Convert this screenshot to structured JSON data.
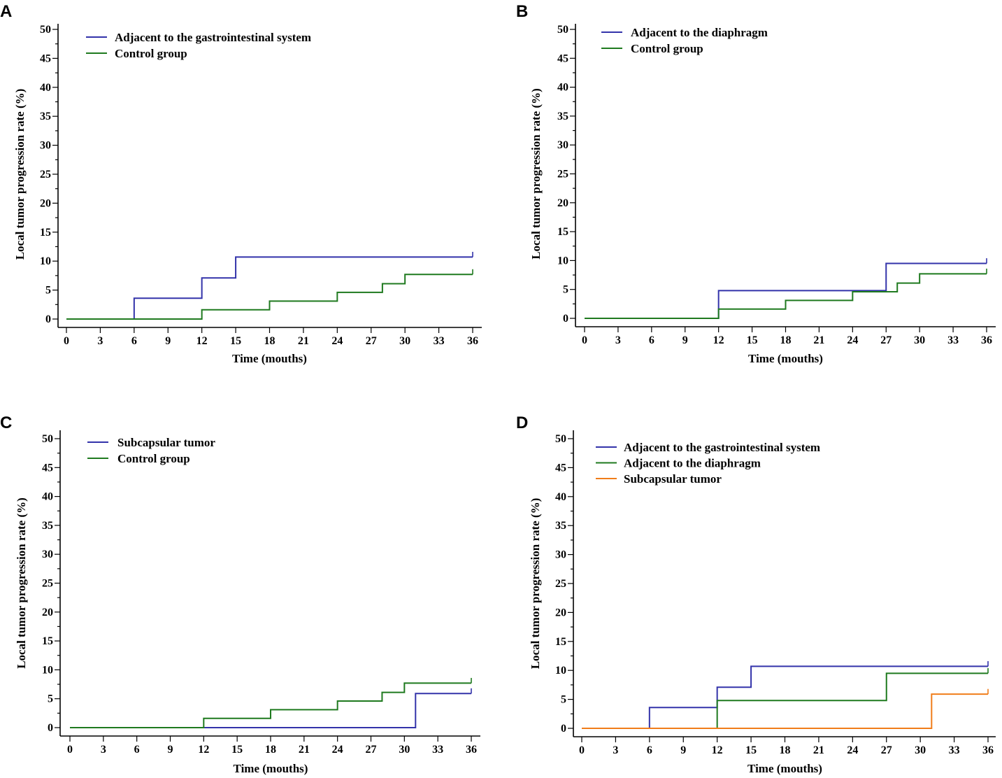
{
  "colors": {
    "blue": "#3333aa",
    "green": "#1f7a1f",
    "orange": "#f07d1a"
  },
  "chart_data": [
    {
      "panel": "A",
      "type": "line",
      "step": true,
      "xlabel": "Time (mouths)",
      "ylabel": "Local tumor progression rate (%)",
      "xlim": [
        0,
        36
      ],
      "ylim": [
        0,
        50
      ],
      "xticks": [
        0,
        3,
        6,
        9,
        12,
        15,
        18,
        21,
        24,
        27,
        30,
        33,
        36
      ],
      "yticks": [
        0,
        5,
        10,
        15,
        20,
        25,
        30,
        35,
        40,
        45,
        50
      ],
      "legend_position": "top-left",
      "series": [
        {
          "name": "Adjacent to the gastrointestinal system",
          "color": "#3333aa",
          "steps": [
            [
              0,
              0
            ],
            [
              6,
              3.6
            ],
            [
              12,
              7.1
            ],
            [
              15,
              10.7
            ],
            [
              36,
              10.7
            ]
          ],
          "censor": [
            36,
            11.6
          ]
        },
        {
          "name": "Control group",
          "color": "#1f7a1f",
          "steps": [
            [
              0,
              0
            ],
            [
              12,
              1.6
            ],
            [
              18,
              3.1
            ],
            [
              24,
              4.6
            ],
            [
              28,
              6.1
            ],
            [
              30,
              7.7
            ],
            [
              36,
              7.7
            ]
          ],
          "censor": [
            36,
            8.6
          ]
        }
      ]
    },
    {
      "panel": "B",
      "type": "line",
      "step": true,
      "xlabel": "Time (mouths)",
      "ylabel": "Local tumor progression rate (%)",
      "xlim": [
        0,
        36
      ],
      "ylim": [
        0,
        50
      ],
      "xticks": [
        0,
        3,
        6,
        9,
        12,
        15,
        18,
        21,
        24,
        27,
        30,
        33,
        36
      ],
      "yticks": [
        0,
        5,
        10,
        15,
        20,
        25,
        30,
        35,
        40,
        45,
        50
      ],
      "legend_position": "top-left",
      "series": [
        {
          "name": "Adjacent to the diaphragm",
          "color": "#3333aa",
          "steps": [
            [
              0,
              0
            ],
            [
              12,
              4.8
            ],
            [
              27,
              9.5
            ],
            [
              36,
              9.5
            ]
          ],
          "censor": [
            36,
            10.4
          ]
        },
        {
          "name": "Control group",
          "color": "#1f7a1f",
          "steps": [
            [
              0,
              0
            ],
            [
              12,
              1.6
            ],
            [
              18,
              3.1
            ],
            [
              24,
              4.6
            ],
            [
              28,
              6.1
            ],
            [
              30,
              7.7
            ],
            [
              36,
              7.7
            ]
          ],
          "censor": [
            36,
            8.6
          ]
        }
      ]
    },
    {
      "panel": "C",
      "type": "line",
      "step": true,
      "xlabel": "Time (mouths)",
      "ylabel": "Local tumor progression rate (%)",
      "xlim": [
        0,
        36
      ],
      "ylim": [
        0,
        50
      ],
      "xticks": [
        0,
        3,
        6,
        9,
        12,
        15,
        18,
        21,
        24,
        27,
        30,
        33,
        36
      ],
      "yticks": [
        0,
        5,
        10,
        15,
        20,
        25,
        30,
        35,
        40,
        45,
        50
      ],
      "legend_position": "top-left",
      "series": [
        {
          "name": "Subcapsular tumor",
          "color": "#3333aa",
          "steps": [
            [
              0,
              0
            ],
            [
              31,
              5.9
            ],
            [
              36,
              5.9
            ]
          ],
          "censor": [
            36,
            6.8
          ]
        },
        {
          "name": "Control group",
          "color": "#1f7a1f",
          "steps": [
            [
              0,
              0
            ],
            [
              12,
              1.6
            ],
            [
              18,
              3.1
            ],
            [
              24,
              4.6
            ],
            [
              28,
              6.1
            ],
            [
              30,
              7.7
            ],
            [
              36,
              7.7
            ]
          ],
          "censor": [
            36,
            8.6
          ]
        }
      ]
    },
    {
      "panel": "D",
      "type": "line",
      "step": true,
      "xlabel": "Time (mouths)",
      "ylabel": "Local tumor progression rate (%)",
      "xlim": [
        0,
        36
      ],
      "ylim": [
        0,
        50
      ],
      "xticks": [
        0,
        3,
        6,
        9,
        12,
        15,
        18,
        21,
        24,
        27,
        30,
        33,
        36
      ],
      "yticks": [
        0,
        5,
        10,
        15,
        20,
        25,
        30,
        35,
        40,
        45,
        50
      ],
      "legend_position": "top-left",
      "series": [
        {
          "name": "Adjacent to the gastrointestinal system",
          "color": "#3333aa",
          "steps": [
            [
              0,
              0
            ],
            [
              6,
              3.6
            ],
            [
              12,
              7.1
            ],
            [
              15,
              10.7
            ],
            [
              36,
              10.7
            ]
          ],
          "censor": [
            36,
            11.6
          ]
        },
        {
          "name": "Adjacent to the diaphragm",
          "color": "#1f7a1f",
          "steps": [
            [
              0,
              0
            ],
            [
              12,
              4.8
            ],
            [
              27,
              9.5
            ],
            [
              36,
              9.5
            ]
          ],
          "censor": [
            36,
            10.4
          ]
        },
        {
          "name": "Subcapsular tumor",
          "color": "#f07d1a",
          "steps": [
            [
              0,
              0
            ],
            [
              31,
              5.9
            ],
            [
              36,
              5.9
            ]
          ],
          "censor": [
            36,
            6.8
          ]
        }
      ]
    }
  ]
}
